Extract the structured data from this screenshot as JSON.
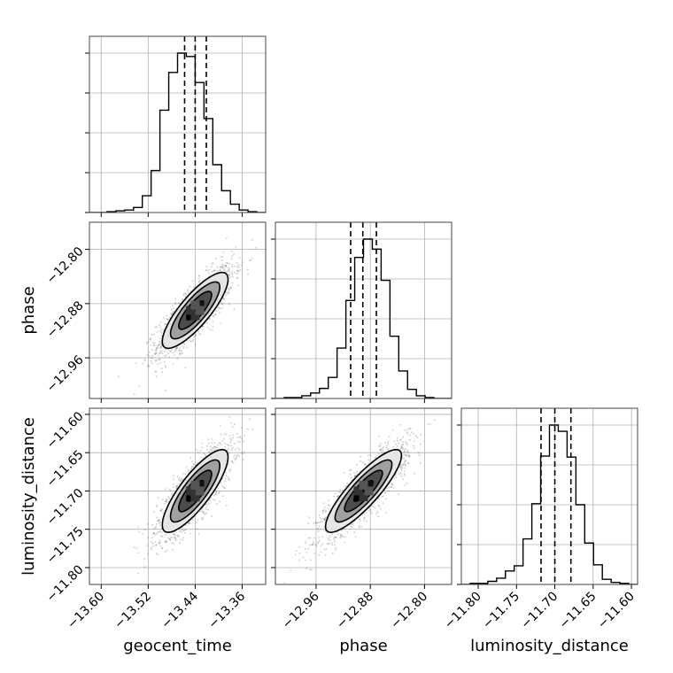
{
  "chart_data": {
    "type": "corner",
    "parameters": [
      "geocent_time",
      "phase",
      "luminosity_distance"
    ],
    "axis_labels": [
      "geocent_time",
      "phase",
      "luminosity_distance"
    ],
    "ranges": {
      "geocent_time": [
        -13.62,
        -13.32
      ],
      "phase": [
        -13.02,
        -12.76
      ],
      "luminosity_distance": [
        -11.822,
        -11.592
      ]
    },
    "ticks": {
      "geocent_time": [
        -13.6,
        -13.52,
        -13.44,
        -13.36
      ],
      "phase": [
        -12.96,
        -12.88,
        -12.8
      ],
      "luminosity_distance": [
        -11.8,
        -11.75,
        -11.7,
        -11.65,
        -11.6
      ]
    },
    "tick_labels": {
      "geocent_time": [
        "−13.60",
        "−13.52",
        "−13.44",
        "−13.36"
      ],
      "phase": [
        "−12.96",
        "−12.88",
        "−12.80"
      ],
      "luminosity_distance": [
        "−11.80",
        "−11.75",
        "−11.70",
        "−11.65",
        "−11.60"
      ]
    },
    "quantiles": {
      "geocent_time": [
        -13.458,
        -13.44,
        -13.421
      ],
      "phase": [
        -12.909,
        -12.891,
        -12.871
      ],
      "luminosity_distance": [
        -11.718,
        -11.7,
        -11.679
      ]
    },
    "histograms": {
      "geocent_time": {
        "edges": [
          -13.62,
          -13.605,
          -13.59,
          -13.575,
          -13.56,
          -13.545,
          -13.53,
          -13.515,
          -13.5,
          -13.485,
          -13.47,
          -13.455,
          -13.44,
          -13.425,
          -13.41,
          -13.395,
          -13.38,
          -13.365,
          -13.35,
          -13.335,
          -13.32
        ],
        "counts": [
          0,
          0,
          1,
          2,
          3,
          6,
          20,
          50,
          122,
          167,
          190,
          186,
          155,
          112,
          57,
          26,
          10,
          3,
          1,
          0
        ]
      },
      "phase": {
        "edges": [
          -13.02,
          -13.007,
          -12.994,
          -12.981,
          -12.968,
          -12.955,
          -12.942,
          -12.929,
          -12.916,
          -12.903,
          -12.89,
          -12.877,
          -12.864,
          -12.851,
          -12.838,
          -12.825,
          -12.812,
          -12.799,
          -12.786,
          -12.773,
          -12.76
        ],
        "counts": [
          0,
          1,
          1,
          3,
          6,
          11,
          23,
          55,
          107,
          154,
          174,
          163,
          129,
          68,
          30,
          10,
          3,
          1,
          0,
          0
        ]
      },
      "luminosity_distance": {
        "edges": [
          -11.822,
          -11.8105,
          -11.799,
          -11.7875,
          -11.776,
          -11.7645,
          -11.753,
          -11.7415,
          -11.73,
          -11.7185,
          -11.707,
          -11.6955,
          -11.684,
          -11.6725,
          -11.661,
          -11.6495,
          -11.638,
          -11.6265,
          -11.615,
          -11.6035,
          -11.592
        ],
        "counts": [
          0,
          1,
          1,
          3,
          6,
          13,
          18,
          44,
          78,
          124,
          154,
          148,
          123,
          77,
          40,
          19,
          5,
          2,
          1,
          0
        ]
      }
    },
    "pairs": [
      {
        "x": "geocent_time",
        "y": "phase",
        "mean": [
          -13.44,
          -12.89
        ],
        "sd": [
          0.028,
          0.028
        ],
        "rho": 0.82
      },
      {
        "x": "geocent_time",
        "y": "luminosity_distance",
        "mean": [
          -13.44,
          -11.7
        ],
        "sd": [
          0.028,
          0.027
        ],
        "rho": 0.82
      },
      {
        "x": "phase",
        "y": "luminosity_distance",
        "mean": [
          -12.89,
          -11.7
        ],
        "sd": [
          0.028,
          0.027
        ],
        "rho": 0.86
      }
    ],
    "contour_levels_sigma": [
      0.5,
      1.0,
      1.5,
      2.0
    ],
    "colors": {
      "line": "#000000",
      "grid": "#b0b0b0",
      "points": "#555555",
      "fills": [
        "#111111",
        "#444444",
        "#9a9a9a",
        "#e6e6e6"
      ]
    }
  }
}
